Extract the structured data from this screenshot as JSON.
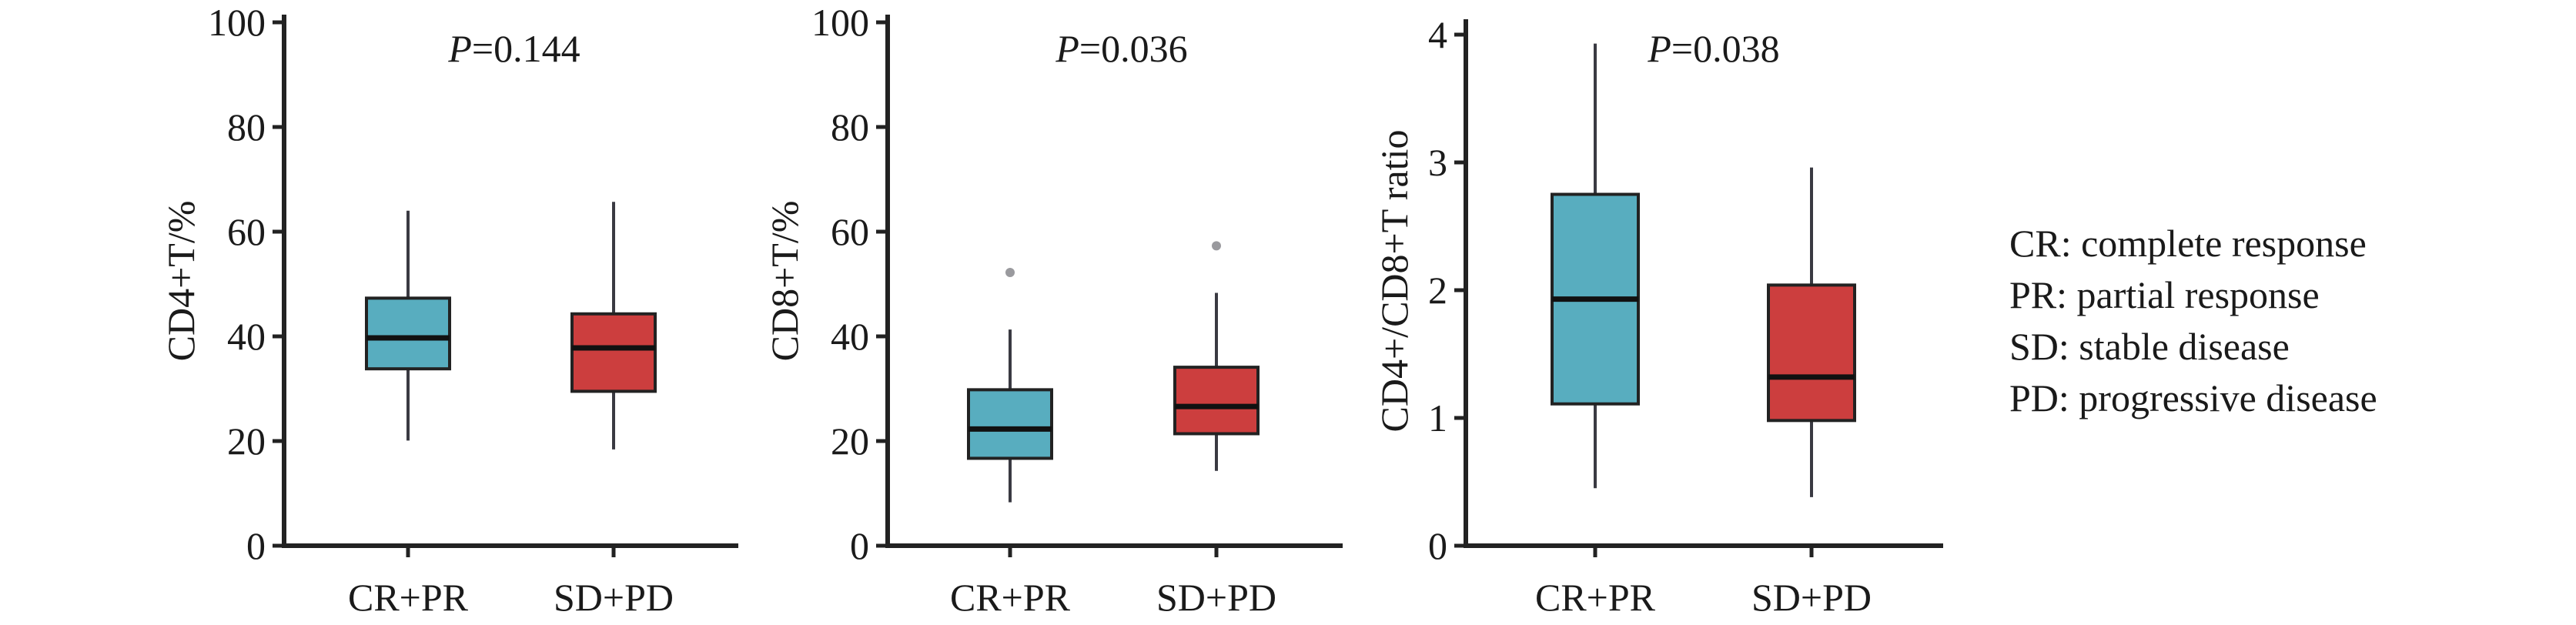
{
  "colors": {
    "cr_pr": "#58adbf",
    "sd_pd": "#cc3e3e"
  },
  "chart_data": [
    {
      "type": "box",
      "ylabel": "CD4+T/%",
      "xlabel": "",
      "ylim": [
        0,
        100
      ],
      "yticks": [
        0,
        20,
        40,
        60,
        80,
        100
      ],
      "categories": [
        "CR+PR",
        "SD+PD"
      ],
      "p_value_prefix": "P",
      "p_value_text": "=0.144",
      "boxes": [
        {
          "category": "CR+PR",
          "whisker_low": 20.1,
          "q1": 33.8,
          "median": 39.7,
          "q3": 47.3,
          "whisker_high": 64.0,
          "outliers": []
        },
        {
          "category": "SD+PD",
          "whisker_low": 18.4,
          "q1": 29.5,
          "median": 37.8,
          "q3": 44.3,
          "whisker_high": 65.7,
          "outliers": []
        }
      ]
    },
    {
      "type": "box",
      "ylabel": "CD8+T/%",
      "xlabel": "",
      "ylim": [
        0,
        100
      ],
      "yticks": [
        0,
        20,
        40,
        60,
        80,
        100
      ],
      "categories": [
        "CR+PR",
        "SD+PD"
      ],
      "p_value_prefix": "P",
      "p_value_text": "=0.036",
      "boxes": [
        {
          "category": "CR+PR",
          "whisker_low": 8.3,
          "q1": 16.7,
          "median": 22.3,
          "q3": 29.8,
          "whisker_high": 41.3,
          "outliers": [
            52.2
          ]
        },
        {
          "category": "SD+PD",
          "whisker_low": 14.3,
          "q1": 21.4,
          "median": 26.6,
          "q3": 34.1,
          "whisker_high": 48.3,
          "outliers": [
            57.3
          ]
        }
      ]
    },
    {
      "type": "box",
      "ylabel": "CD4+/CD8+T ratio",
      "xlabel": "",
      "ylim": [
        0,
        4
      ],
      "yticks": [
        0,
        1,
        2,
        3,
        4
      ],
      "categories": [
        "CR+PR",
        "SD+PD"
      ],
      "p_value_prefix": "P",
      "p_value_text": "=0.038",
      "boxes": [
        {
          "category": "CR+PR",
          "whisker_low": 0.45,
          "q1": 1.11,
          "median": 1.93,
          "q3": 2.75,
          "whisker_high": 3.93,
          "outliers": []
        },
        {
          "category": "SD+PD",
          "whisker_low": 0.38,
          "q1": 0.98,
          "median": 1.32,
          "q3": 2.04,
          "whisker_high": 2.96,
          "outliers": []
        }
      ]
    }
  ],
  "legend": {
    "placement": "right",
    "lines": [
      "CR: complete response",
      "PR: partial response",
      "SD: stable disease",
      "PD: progressive disease"
    ]
  }
}
